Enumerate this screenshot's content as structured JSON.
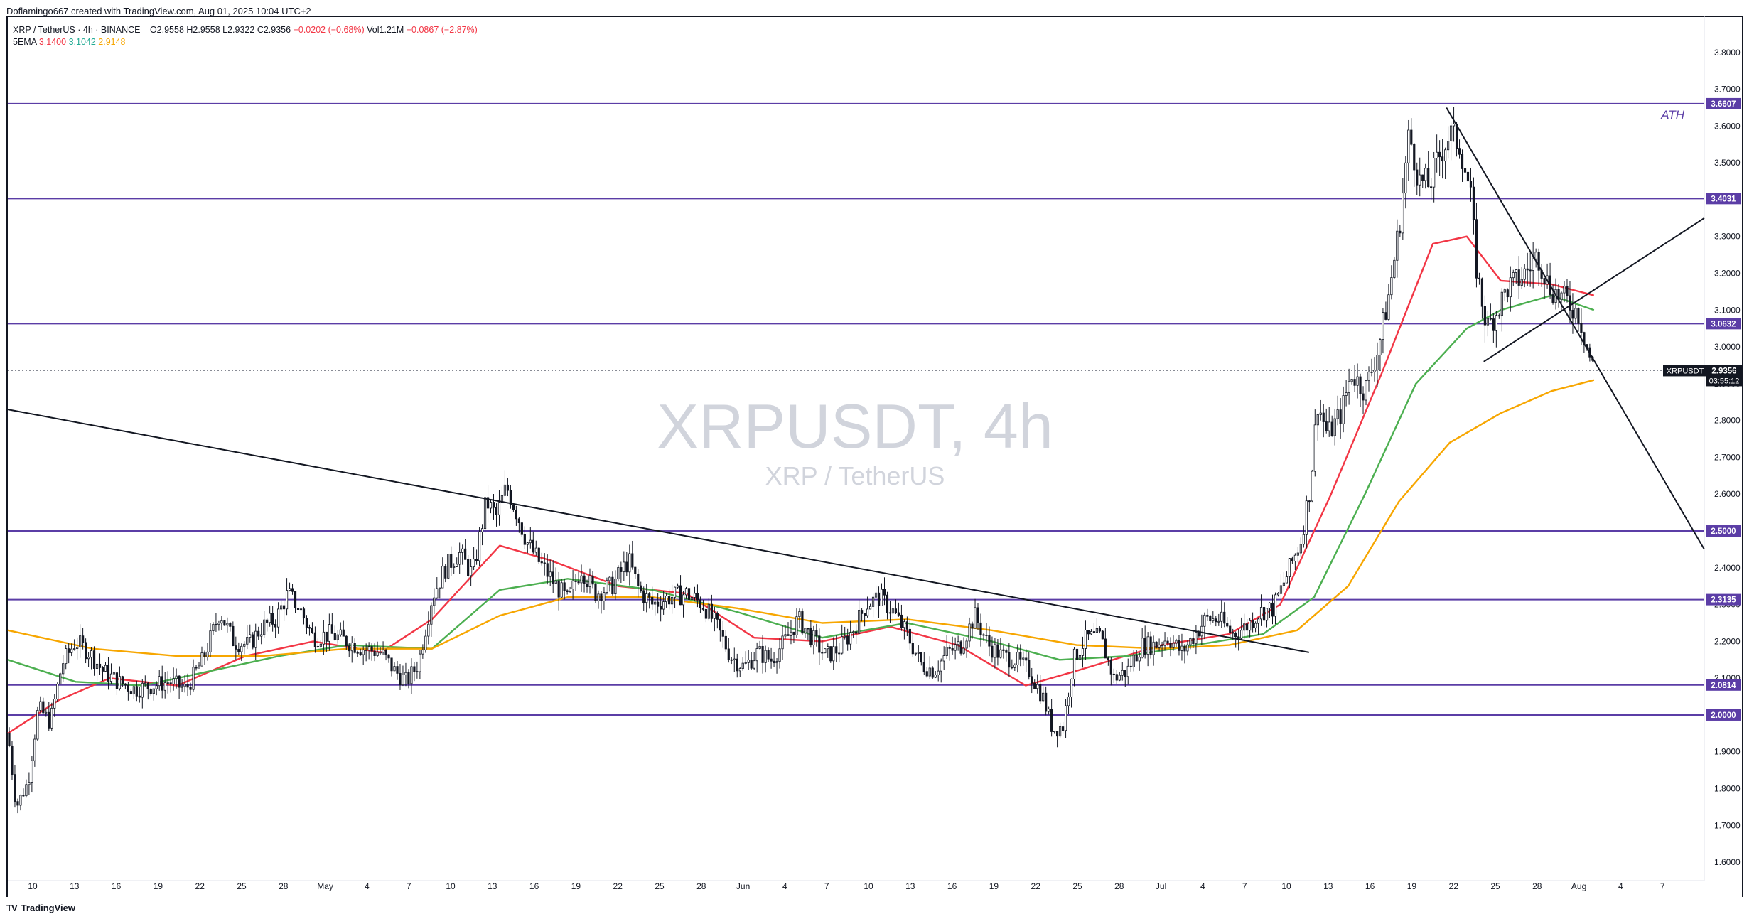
{
  "header": {
    "attribution": "Doflamingo667 created with TradingView.com, Aug 01, 2025 10:04 UTC+2"
  },
  "legend": {
    "title": "XRP / TetherUS · 4h · BINANCE",
    "open": "O2.9558",
    "high": "H2.9558",
    "low": "L2.9322",
    "close": "C2.9356",
    "change": "−0.0202 (−0.68%)",
    "vol": "Vol1.21M",
    "vol_change": "−0.0867 (−2.87%)",
    "ema_label": "5EMA",
    "ema_red": "3.1400",
    "ema_green": "3.1042",
    "ema_orange": "2.9148"
  },
  "watermark": {
    "symbol": "XRPUSDT, 4h",
    "name": "XRP / TetherUS"
  },
  "annotation": {
    "ath": "ATH"
  },
  "price_tag": {
    "symbol": "XRPUSDT",
    "price": "2.9356",
    "countdown": "03:55:12"
  },
  "footer": {
    "brand": "TradingView"
  },
  "colors": {
    "level_line": "#5b3da6",
    "ema_red": "#f23645",
    "ema_green": "#4caf50",
    "ema_orange": "#f7a600",
    "candle": "#131722"
  },
  "chart_data": {
    "type": "candlestick",
    "y_axis": {
      "ylim": [
        1.55,
        3.9
      ],
      "ticks": [
        "3.8000",
        "3.7000",
        "3.6000",
        "3.5000",
        "3.4000",
        "3.3000",
        "3.2000",
        "3.1000",
        "3.0000",
        "2.9000",
        "2.8000",
        "2.7000",
        "2.6000",
        "2.5000",
        "2.4000",
        "2.3000",
        "2.2000",
        "2.1000",
        "2.0000",
        "1.9000",
        "1.8000",
        "1.7000",
        "1.6000"
      ]
    },
    "x_axis": {
      "ticks": [
        "10",
        "13",
        "16",
        "19",
        "22",
        "25",
        "28",
        "May",
        "4",
        "7",
        "10",
        "13",
        "16",
        "19",
        "22",
        "25",
        "28",
        "Jun",
        "4",
        "7",
        "10",
        "13",
        "16",
        "19",
        "22",
        "25",
        "28",
        "Jul",
        "4",
        "7",
        "10",
        "13",
        "16",
        "19",
        "22",
        "25",
        "28",
        "Aug",
        "4",
        "7"
      ]
    },
    "horizontal_levels": [
      {
        "value": 3.6607,
        "label": "3.6607"
      },
      {
        "value": 3.4031,
        "label": "3.4031"
      },
      {
        "value": 3.0632,
        "label": "3.0632"
      },
      {
        "value": 2.5,
        "label": "2.5000"
      },
      {
        "value": 2.3135,
        "label": "2.3135"
      },
      {
        "value": 2.0814,
        "label": "2.0814"
      },
      {
        "value": 2.0,
        "label": "2.0000"
      }
    ],
    "last_price": 2.9356,
    "trendlines": [
      {
        "from": [
          0,
          2.83
        ],
        "to": [
          0.767,
          2.17
        ]
      },
      {
        "from": [
          0.848,
          3.65
        ],
        "to": [
          1.0,
          2.45
        ]
      },
      {
        "from": [
          0.87,
          2.96
        ],
        "to": [
          1.0,
          3.35
        ]
      }
    ],
    "price_path": [
      [
        0.0,
        1.95
      ],
      [
        0.005,
        1.75
      ],
      [
        0.012,
        1.82
      ],
      [
        0.018,
        2.02
      ],
      [
        0.025,
        1.98
      ],
      [
        0.032,
        2.14
      ],
      [
        0.04,
        2.2
      ],
      [
        0.048,
        2.17
      ],
      [
        0.056,
        2.12
      ],
      [
        0.065,
        2.09
      ],
      [
        0.075,
        2.07
      ],
      [
        0.085,
        2.08
      ],
      [
        0.095,
        2.09
      ],
      [
        0.105,
        2.07
      ],
      [
        0.115,
        2.15
      ],
      [
        0.125,
        2.28
      ],
      [
        0.133,
        2.2
      ],
      [
        0.142,
        2.19
      ],
      [
        0.15,
        2.24
      ],
      [
        0.158,
        2.26
      ],
      [
        0.165,
        2.33
      ],
      [
        0.172,
        2.29
      ],
      [
        0.18,
        2.21
      ],
      [
        0.19,
        2.22
      ],
      [
        0.2,
        2.2
      ],
      [
        0.21,
        2.18
      ],
      [
        0.22,
        2.17
      ],
      [
        0.228,
        2.12
      ],
      [
        0.235,
        2.09
      ],
      [
        0.242,
        2.14
      ],
      [
        0.25,
        2.32
      ],
      [
        0.258,
        2.4
      ],
      [
        0.266,
        2.44
      ],
      [
        0.274,
        2.38
      ],
      [
        0.282,
        2.58
      ],
      [
        0.288,
        2.54
      ],
      [
        0.294,
        2.62
      ],
      [
        0.3,
        2.55
      ],
      [
        0.306,
        2.47
      ],
      [
        0.314,
        2.41
      ],
      [
        0.322,
        2.36
      ],
      [
        0.33,
        2.31
      ],
      [
        0.338,
        2.4
      ],
      [
        0.346,
        2.33
      ],
      [
        0.356,
        2.35
      ],
      [
        0.366,
        2.42
      ],
      [
        0.372,
        2.34
      ],
      [
        0.38,
        2.3
      ],
      [
        0.39,
        2.32
      ],
      [
        0.4,
        2.33
      ],
      [
        0.41,
        2.3
      ],
      [
        0.418,
        2.24
      ],
      [
        0.426,
        2.16
      ],
      [
        0.434,
        2.13
      ],
      [
        0.442,
        2.17
      ],
      [
        0.45,
        2.15
      ],
      [
        0.458,
        2.2
      ],
      [
        0.466,
        2.26
      ],
      [
        0.474,
        2.21
      ],
      [
        0.482,
        2.16
      ],
      [
        0.49,
        2.18
      ],
      [
        0.498,
        2.23
      ],
      [
        0.506,
        2.3
      ],
      [
        0.514,
        2.32
      ],
      [
        0.522,
        2.28
      ],
      [
        0.53,
        2.22
      ],
      [
        0.538,
        2.14
      ],
      [
        0.546,
        2.12
      ],
      [
        0.554,
        2.17
      ],
      [
        0.562,
        2.19
      ],
      [
        0.57,
        2.27
      ],
      [
        0.578,
        2.19
      ],
      [
        0.586,
        2.16
      ],
      [
        0.594,
        2.15
      ],
      [
        0.602,
        2.12
      ],
      [
        0.61,
        2.05
      ],
      [
        0.616,
        1.96
      ],
      [
        0.622,
        1.97
      ],
      [
        0.628,
        2.15
      ],
      [
        0.636,
        2.21
      ],
      [
        0.644,
        2.21
      ],
      [
        0.652,
        2.1
      ],
      [
        0.66,
        2.12
      ],
      [
        0.668,
        2.19
      ],
      [
        0.676,
        2.19
      ],
      [
        0.684,
        2.21
      ],
      [
        0.692,
        2.17
      ],
      [
        0.7,
        2.22
      ],
      [
        0.706,
        2.26
      ],
      [
        0.714,
        2.26
      ],
      [
        0.722,
        2.22
      ],
      [
        0.73,
        2.24
      ],
      [
        0.738,
        2.28
      ],
      [
        0.746,
        2.29
      ],
      [
        0.754,
        2.38
      ],
      [
        0.762,
        2.47
      ],
      [
        0.768,
        2.63
      ],
      [
        0.772,
        2.85
      ],
      [
        0.778,
        2.76
      ],
      [
        0.786,
        2.82
      ],
      [
        0.792,
        2.93
      ],
      [
        0.8,
        2.88
      ],
      [
        0.808,
        3.0
      ],
      [
        0.814,
        3.14
      ],
      [
        0.82,
        3.32
      ],
      [
        0.826,
        3.58
      ],
      [
        0.832,
        3.45
      ],
      [
        0.838,
        3.44
      ],
      [
        0.844,
        3.52
      ],
      [
        0.85,
        3.58
      ],
      [
        0.856,
        3.55
      ],
      [
        0.862,
        3.42
      ],
      [
        0.866,
        3.2
      ],
      [
        0.872,
        3.05
      ],
      [
        0.878,
        3.1
      ],
      [
        0.884,
        3.16
      ],
      [
        0.89,
        3.18
      ],
      [
        0.896,
        3.21
      ],
      [
        0.902,
        3.25
      ],
      [
        0.908,
        3.17
      ],
      [
        0.914,
        3.14
      ],
      [
        0.92,
        3.12
      ],
      [
        0.926,
        3.09
      ],
      [
        0.932,
        2.98
      ],
      [
        0.935,
        2.936
      ]
    ],
    "ema_series": [
      {
        "color": "red",
        "values": [
          [
            0.0,
            1.95
          ],
          [
            0.03,
            2.04
          ],
          [
            0.06,
            2.1
          ],
          [
            0.1,
            2.08
          ],
          [
            0.14,
            2.16
          ],
          [
            0.18,
            2.2
          ],
          [
            0.22,
            2.17
          ],
          [
            0.25,
            2.26
          ],
          [
            0.29,
            2.46
          ],
          [
            0.32,
            2.42
          ],
          [
            0.36,
            2.35
          ],
          [
            0.4,
            2.33
          ],
          [
            0.44,
            2.21
          ],
          [
            0.48,
            2.2
          ],
          [
            0.52,
            2.24
          ],
          [
            0.56,
            2.19
          ],
          [
            0.6,
            2.08
          ],
          [
            0.63,
            2.12
          ],
          [
            0.68,
            2.19
          ],
          [
            0.72,
            2.22
          ],
          [
            0.75,
            2.3
          ],
          [
            0.78,
            2.6
          ],
          [
            0.81,
            2.93
          ],
          [
            0.84,
            3.28
          ],
          [
            0.86,
            3.3
          ],
          [
            0.88,
            3.18
          ],
          [
            0.91,
            3.17
          ],
          [
            0.935,
            3.14
          ]
        ]
      },
      {
        "color": "green",
        "values": [
          [
            0.0,
            2.15
          ],
          [
            0.04,
            2.09
          ],
          [
            0.08,
            2.08
          ],
          [
            0.12,
            2.12
          ],
          [
            0.16,
            2.16
          ],
          [
            0.2,
            2.19
          ],
          [
            0.25,
            2.18
          ],
          [
            0.29,
            2.34
          ],
          [
            0.33,
            2.37
          ],
          [
            0.38,
            2.34
          ],
          [
            0.43,
            2.28
          ],
          [
            0.48,
            2.21
          ],
          [
            0.53,
            2.25
          ],
          [
            0.58,
            2.2
          ],
          [
            0.62,
            2.15
          ],
          [
            0.66,
            2.16
          ],
          [
            0.7,
            2.19
          ],
          [
            0.74,
            2.22
          ],
          [
            0.77,
            2.32
          ],
          [
            0.8,
            2.6
          ],
          [
            0.83,
            2.9
          ],
          [
            0.86,
            3.05
          ],
          [
            0.88,
            3.1
          ],
          [
            0.91,
            3.14
          ],
          [
            0.935,
            3.1
          ]
        ]
      },
      {
        "color": "orange",
        "values": [
          [
            0.0,
            2.23
          ],
          [
            0.05,
            2.18
          ],
          [
            0.1,
            2.16
          ],
          [
            0.15,
            2.16
          ],
          [
            0.2,
            2.18
          ],
          [
            0.25,
            2.18
          ],
          [
            0.29,
            2.27
          ],
          [
            0.33,
            2.32
          ],
          [
            0.38,
            2.32
          ],
          [
            0.43,
            2.29
          ],
          [
            0.48,
            2.25
          ],
          [
            0.53,
            2.26
          ],
          [
            0.58,
            2.23
          ],
          [
            0.63,
            2.19
          ],
          [
            0.68,
            2.18
          ],
          [
            0.72,
            2.19
          ],
          [
            0.76,
            2.23
          ],
          [
            0.79,
            2.35
          ],
          [
            0.82,
            2.58
          ],
          [
            0.85,
            2.74
          ],
          [
            0.88,
            2.82
          ],
          [
            0.91,
            2.88
          ],
          [
            0.935,
            2.91
          ]
        ]
      }
    ]
  }
}
